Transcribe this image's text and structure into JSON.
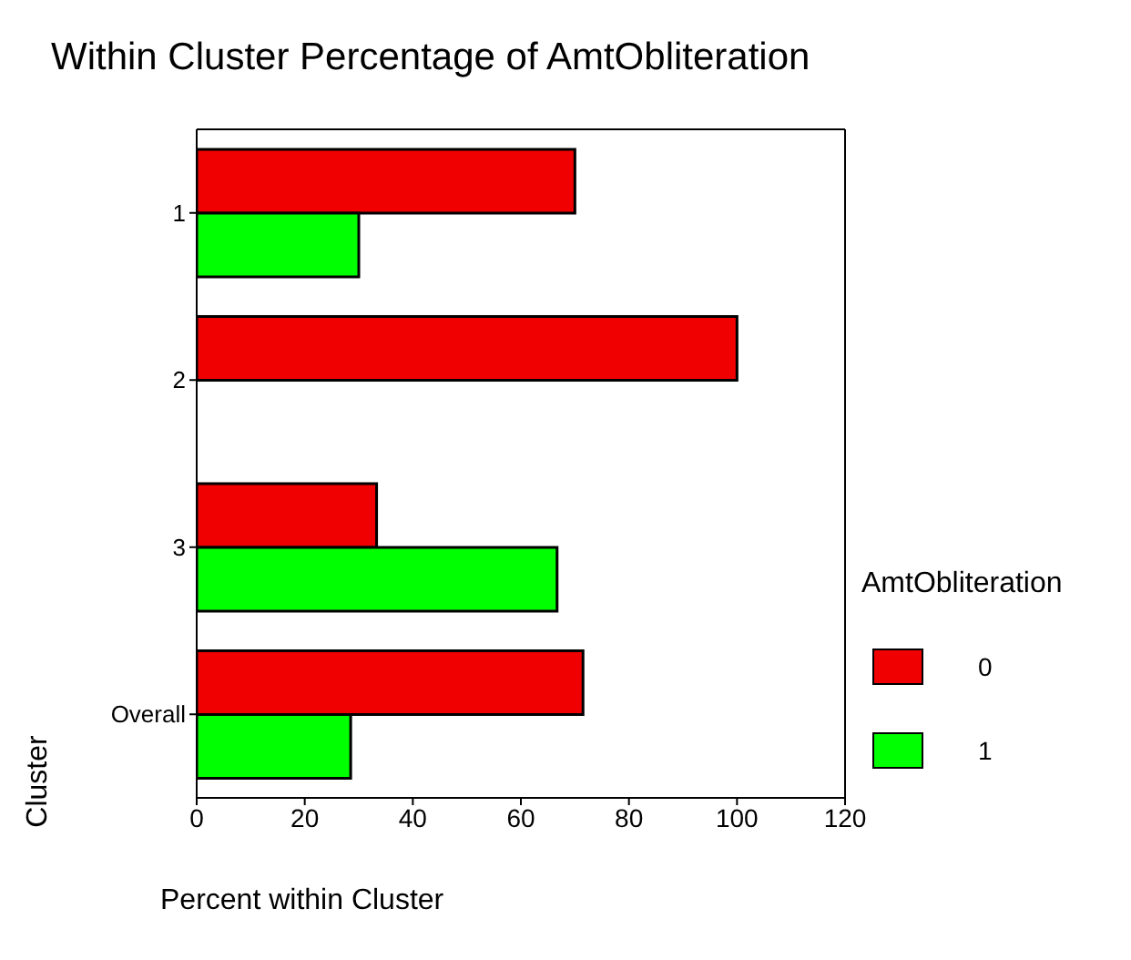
{
  "chart_data": {
    "type": "bar",
    "orientation": "horizontal",
    "title": "Within Cluster Percentage of AmtObliteration",
    "xlabel": "Percent within Cluster",
    "ylabel": "Cluster",
    "legend_title": "AmtObliteration",
    "categories": [
      "1",
      "2",
      "3",
      "Overall"
    ],
    "series": [
      {
        "name": "0",
        "color": "#f00000",
        "values": [
          70,
          100,
          33.3,
          71.5
        ]
      },
      {
        "name": "1",
        "color": "#00ff00",
        "values": [
          30,
          null,
          66.7,
          28.5
        ]
      }
    ],
    "xlim": [
      0,
      120
    ],
    "xticks": [
      0,
      20,
      40,
      60,
      80,
      100,
      120
    ],
    "legend": "right"
  }
}
